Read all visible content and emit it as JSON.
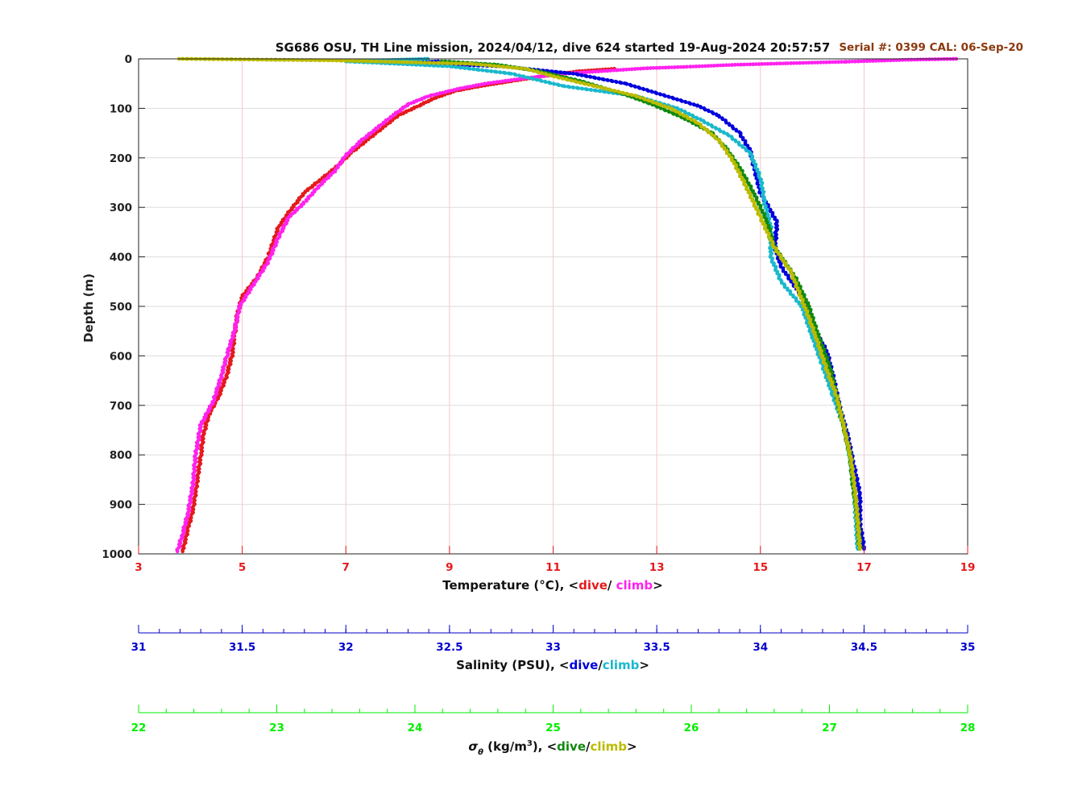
{
  "chart_data": {
    "type": "scatter",
    "title": "SG686 OSU, TH Line mission, 2024/04/12, dive 624 started 19-Aug-2024 20:57:57",
    "serial_text": "Serial #: 0399  CAL: 06-Sep-20",
    "ylabel": "Depth (m)",
    "ylim": [
      0,
      1000
    ],
    "y_reversed": true,
    "yticks": [
      0,
      100,
      200,
      300,
      400,
      500,
      600,
      700,
      800,
      900,
      1000
    ],
    "grid": true,
    "axes": {
      "temperature": {
        "label_prefix": "Temperature (°C), <",
        "label_dive": "dive",
        "label_sep": "/ ",
        "label_climb": "climb",
        "label_suffix": ">",
        "range": [
          3,
          19
        ],
        "ticks": [
          3,
          5,
          7,
          9,
          11,
          13,
          15,
          17,
          19
        ],
        "color": "#e41a1c"
      },
      "salinity": {
        "label_prefix": "Salinity (PSU), <",
        "label_dive": "dive",
        "label_sep": "/",
        "label_climb": "climb",
        "label_suffix": ">",
        "range": [
          31,
          35
        ],
        "ticks": [
          31,
          31.5,
          32,
          32.5,
          33,
          33.5,
          34,
          34.5,
          35
        ],
        "color": "#0000cc"
      },
      "density": {
        "label_sigma": "σ",
        "label_theta": "θ",
        "label_units": " (kg/m",
        "label_exp": "3",
        "label_prefix": "), <",
        "label_dive": "dive",
        "label_sep": "/",
        "label_climb": "climb",
        "label_suffix": ">",
        "range": [
          22,
          28
        ],
        "ticks": [
          22,
          23,
          24,
          25,
          26,
          27,
          28
        ],
        "color": "#00ee00"
      }
    },
    "series": [
      {
        "name": "temperature dive",
        "axis": "temperature",
        "color": "#e41a1c",
        "points": [
          [
            12.2,
            20
          ],
          [
            11.5,
            25
          ],
          [
            10.8,
            35
          ],
          [
            10.2,
            45
          ],
          [
            9.6,
            55
          ],
          [
            9.1,
            65
          ],
          [
            8.7,
            80
          ],
          [
            8.4,
            95
          ],
          [
            8.0,
            115
          ],
          [
            7.7,
            140
          ],
          [
            7.4,
            165
          ],
          [
            7.1,
            190
          ],
          [
            6.8,
            220
          ],
          [
            6.5,
            245
          ],
          [
            6.2,
            270
          ],
          [
            5.9,
            310
          ],
          [
            5.7,
            340
          ],
          [
            5.5,
            400
          ],
          [
            5.3,
            440
          ],
          [
            5.0,
            480
          ],
          [
            4.9,
            520
          ],
          [
            4.85,
            560
          ],
          [
            4.8,
            600
          ],
          [
            4.7,
            640
          ],
          [
            4.55,
            680
          ],
          [
            4.35,
            720
          ],
          [
            4.25,
            760
          ],
          [
            4.2,
            800
          ],
          [
            4.12,
            860
          ],
          [
            4.05,
            910
          ],
          [
            3.95,
            950
          ],
          [
            3.85,
            995
          ]
        ]
      },
      {
        "name": "temperature climb",
        "axis": "temperature",
        "color": "#ff22ee",
        "points": [
          [
            18.8,
            0
          ],
          [
            17.8,
            2
          ],
          [
            16.6,
            6
          ],
          [
            15.5,
            9
          ],
          [
            14.5,
            12
          ],
          [
            13.6,
            16
          ],
          [
            12.8,
            19
          ],
          [
            12.2,
            23
          ],
          [
            11.2,
            30
          ],
          [
            10.4,
            40
          ],
          [
            9.7,
            50
          ],
          [
            9.2,
            60
          ],
          [
            8.6,
            75
          ],
          [
            8.2,
            92
          ],
          [
            7.9,
            115
          ],
          [
            7.6,
            140
          ],
          [
            7.3,
            165
          ],
          [
            7.0,
            195
          ],
          [
            6.8,
            225
          ],
          [
            6.5,
            255
          ],
          [
            6.2,
            290
          ],
          [
            5.9,
            320
          ],
          [
            5.7,
            360
          ],
          [
            5.5,
            410
          ],
          [
            5.25,
            450
          ],
          [
            4.95,
            500
          ],
          [
            4.85,
            550
          ],
          [
            4.7,
            600
          ],
          [
            4.6,
            640
          ],
          [
            4.45,
            690
          ],
          [
            4.2,
            740
          ],
          [
            4.1,
            800
          ],
          [
            4.05,
            860
          ],
          [
            3.95,
            920
          ],
          [
            3.85,
            960
          ],
          [
            3.75,
            995
          ]
        ]
      },
      {
        "name": "salinity dive",
        "axis": "salinity",
        "color": "#0000dd",
        "points": [
          [
            32.45,
            5
          ],
          [
            32.3,
            8
          ],
          [
            32.75,
            15
          ],
          [
            33.1,
            30
          ],
          [
            33.35,
            50
          ],
          [
            33.7,
            95
          ],
          [
            33.8,
            115
          ],
          [
            33.9,
            150
          ],
          [
            33.95,
            185
          ],
          [
            33.97,
            220
          ],
          [
            34.0,
            270
          ],
          [
            34.08,
            330
          ],
          [
            34.07,
            380
          ],
          [
            34.1,
            420
          ],
          [
            34.2,
            480
          ],
          [
            34.25,
            540
          ],
          [
            34.32,
            590
          ],
          [
            34.35,
            640
          ],
          [
            34.38,
            700
          ],
          [
            34.42,
            760
          ],
          [
            34.45,
            820
          ],
          [
            34.48,
            880
          ],
          [
            34.48,
            940
          ],
          [
            34.5,
            990
          ]
        ]
      },
      {
        "name": "salinity climb",
        "axis": "salinity",
        "color": "#1ab8cc",
        "points": [
          [
            32.4,
            0
          ],
          [
            32.0,
            5
          ],
          [
            32.5,
            15
          ],
          [
            32.8,
            30
          ],
          [
            33.05,
            55
          ],
          [
            33.4,
            75
          ],
          [
            33.6,
            100
          ],
          [
            33.72,
            125
          ],
          [
            33.85,
            155
          ],
          [
            33.95,
            190
          ],
          [
            34.0,
            240
          ],
          [
            34.02,
            290
          ],
          [
            34.05,
            340
          ],
          [
            34.05,
            400
          ],
          [
            34.1,
            450
          ],
          [
            34.2,
            500
          ],
          [
            34.25,
            560
          ],
          [
            34.3,
            620
          ],
          [
            34.35,
            680
          ],
          [
            34.4,
            740
          ],
          [
            34.43,
            800
          ],
          [
            34.45,
            860
          ],
          [
            34.46,
            920
          ],
          [
            34.47,
            990
          ]
        ]
      },
      {
        "name": "sigma dive",
        "axis": "density",
        "color": "#118811",
        "points": [
          [
            24.2,
            5
          ],
          [
            24.6,
            12
          ],
          [
            24.9,
            25
          ],
          [
            25.2,
            45
          ],
          [
            25.5,
            70
          ],
          [
            25.7,
            90
          ],
          [
            25.95,
            120
          ],
          [
            26.15,
            150
          ],
          [
            26.25,
            180
          ],
          [
            26.35,
            220
          ],
          [
            26.45,
            270
          ],
          [
            26.55,
            330
          ],
          [
            26.6,
            380
          ],
          [
            26.75,
            440
          ],
          [
            26.85,
            500
          ],
          [
            26.92,
            560
          ],
          [
            27.0,
            620
          ],
          [
            27.05,
            680
          ],
          [
            27.1,
            740
          ],
          [
            27.15,
            800
          ],
          [
            27.17,
            860
          ],
          [
            27.2,
            920
          ],
          [
            27.22,
            990
          ]
        ]
      },
      {
        "name": "sigma climb",
        "axis": "density",
        "color": "#bbbb00",
        "points": [
          [
            22.3,
            0
          ],
          [
            23.4,
            3
          ],
          [
            24.4,
            10
          ],
          [
            24.8,
            20
          ],
          [
            25.0,
            35
          ],
          [
            25.3,
            55
          ],
          [
            25.6,
            75
          ],
          [
            25.85,
            100
          ],
          [
            26.05,
            130
          ],
          [
            26.2,
            165
          ],
          [
            26.3,
            205
          ],
          [
            26.4,
            260
          ],
          [
            26.5,
            320
          ],
          [
            26.6,
            380
          ],
          [
            26.72,
            430
          ],
          [
            26.82,
            500
          ],
          [
            26.9,
            560
          ],
          [
            26.97,
            620
          ],
          [
            27.05,
            680
          ],
          [
            27.1,
            740
          ],
          [
            27.15,
            800
          ],
          [
            27.18,
            860
          ],
          [
            27.2,
            920
          ],
          [
            27.22,
            990
          ]
        ]
      }
    ]
  }
}
